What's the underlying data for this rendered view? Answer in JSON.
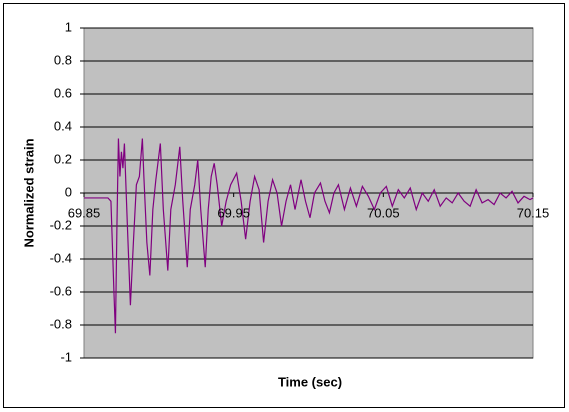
{
  "chart_data": {
    "type": "line",
    "x_label": "Time (sec)",
    "y_label": "Normalized strain",
    "color": "#800080",
    "x": [
      69.85,
      69.866,
      69.868,
      69.87,
      69.871,
      69.872,
      69.873,
      69.874,
      69.875,
      69.876,
      69.877,
      69.879,
      69.881,
      69.883,
      69.885,
      69.887,
      69.889,
      69.89,
      69.892,
      69.894,
      69.896,
      69.898,
      69.901,
      69.903,
      69.906,
      69.908,
      69.911,
      69.914,
      69.916,
      69.919,
      69.921,
      69.924,
      69.926,
      69.928,
      69.931,
      69.933,
      69.935,
      69.937,
      69.939,
      69.942,
      69.945,
      69.948,
      69.952,
      69.955,
      69.958,
      69.961,
      69.964,
      69.967,
      69.97,
      69.973,
      69.976,
      69.979,
      69.982,
      69.985,
      69.988,
      69.991,
      69.995,
      69.998,
      70.001,
      70.004,
      70.008,
      70.011,
      70.014,
      70.017,
      70.02,
      70.024,
      70.028,
      70.032,
      70.036,
      70.04,
      70.044,
      70.048,
      70.052,
      70.056,
      70.06,
      70.064,
      70.068,
      70.072,
      70.076,
      70.08,
      70.084,
      70.088,
      70.092,
      70.096,
      70.1,
      70.104,
      70.108,
      70.112,
      70.116,
      70.12,
      70.124,
      70.128,
      70.132,
      70.136,
      70.14,
      70.144,
      70.148,
      70.15
    ],
    "values": [
      -0.03,
      -0.03,
      -0.05,
      -0.6,
      -0.85,
      -0.2,
      0.33,
      0.1,
      0.25,
      0.15,
      0.3,
      -0.2,
      -0.68,
      -0.3,
      0.05,
      0.1,
      0.33,
      0.1,
      -0.3,
      -0.5,
      -0.1,
      0.08,
      0.3,
      -0.1,
      -0.47,
      -0.1,
      0.05,
      0.28,
      -0.05,
      -0.45,
      -0.1,
      0.05,
      0.2,
      -0.1,
      -0.45,
      -0.1,
      0.1,
      0.18,
      0.05,
      -0.2,
      -0.05,
      0.05,
      0.12,
      -0.05,
      -0.28,
      -0.05,
      0.1,
      0.02,
      -0.3,
      -0.05,
      0.08,
      0,
      -0.2,
      -0.05,
      0.05,
      -0.1,
      0.08,
      -0.05,
      -0.15,
      0,
      0.06,
      -0.05,
      -0.12,
      0,
      0.05,
      -0.1,
      0.03,
      -0.08,
      0.04,
      -0.02,
      -0.1,
      0,
      0.04,
      -0.08,
      0.02,
      -0.03,
      0.03,
      -0.1,
      0,
      -0.05,
      0.02,
      -0.08,
      -0.03,
      -0.06,
      0,
      -0.05,
      -0.08,
      0.02,
      -0.06,
      -0.04,
      -0.07,
      0,
      -0.03,
      0.01,
      -0.06,
      -0.02,
      -0.04,
      -0.03
    ],
    "xlim": [
      69.85,
      70.15
    ],
    "xticks": [
      69.85,
      69.95,
      70.05,
      70.15
    ],
    "ylim": [
      -1,
      1
    ],
    "yticks": [
      -1,
      -0.8,
      -0.6,
      -0.4,
      -0.2,
      0,
      0.2,
      0.4,
      0.6,
      0.8,
      1
    ],
    "grid": true
  }
}
